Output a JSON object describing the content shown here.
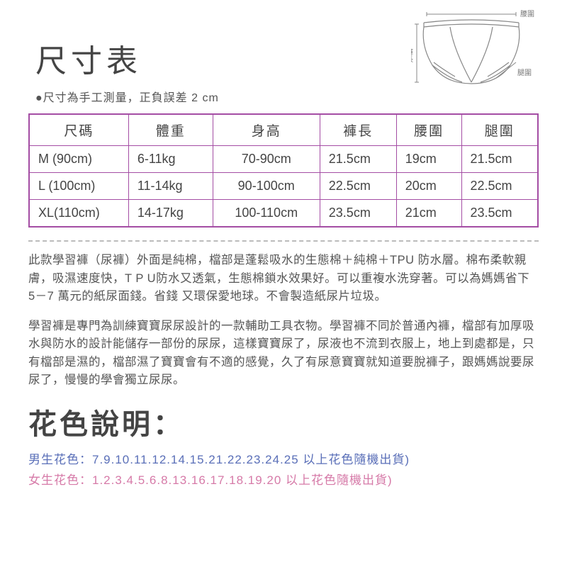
{
  "diagram": {
    "labels": {
      "waist": "腰圍",
      "length": "褲長",
      "leg": "腿圍"
    },
    "stroke_color": "#888888",
    "text_color": "#777777"
  },
  "title": "尺寸表",
  "subtitle": "●尺寸為手工測量，正負誤差 2 cm",
  "table": {
    "border_color": "#a44da4",
    "columns": [
      "尺碼",
      "體重",
      "身高",
      "褲長",
      "腰圍",
      "腿圍"
    ],
    "rows": [
      [
        "M (90cm)",
        "6-11kg",
        "70-90cm",
        "21.5cm",
        "19cm",
        "21.5cm"
      ],
      [
        "L (100cm)",
        "11-14kg",
        "90-100cm",
        "22.5cm",
        "20cm",
        "22.5cm"
      ],
      [
        "XL(110cm)",
        "14-17kg",
        "100-110cm",
        "23.5cm",
        "21cm",
        "23.5cm"
      ]
    ]
  },
  "paragraphs": {
    "p1": "此款學習褲（尿褲）外面是純棉，檔部是蓬鬆吸水的生態棉＋純棉＋TPU 防水層。棉布柔軟親膚，吸濕速度快，T P U防水又透氣，生態棉鎖水效果好。可以重複水洗穿著。可以為媽媽省下 5－7 萬元的紙尿面錢。省錢 又環保愛地球。不會製造紙尿片垃圾。",
    "p2": "學習褲是專門為訓練寶寶尿尿設計的一款輔助工具衣物。學習褲不同於普通內褲，檔部有加厚吸水與防水的設計能儲存一部份的尿尿，這樣寶寶尿了，尿液也不流到衣服上，地上到處都是，只有檔部是濕的，檔部濕了寶寶會有不適的感覺，久了有尿意寶寶就知道要脫褲子，跟媽媽說要尿尿了，慢慢的學會獨立尿尿。"
  },
  "color_section": {
    "title": "花色說明：",
    "boys": "男生花色：7.9.10.11.12.14.15.21.22.23.24.25 以上花色隨機出貨)",
    "girls": "女生花色：1.2.3.4.5.6.8.13.16.17.18.19.20 以上花色隨機出貨)",
    "boys_color": "#5a6fb8",
    "girls_color": "#d67aa8"
  }
}
